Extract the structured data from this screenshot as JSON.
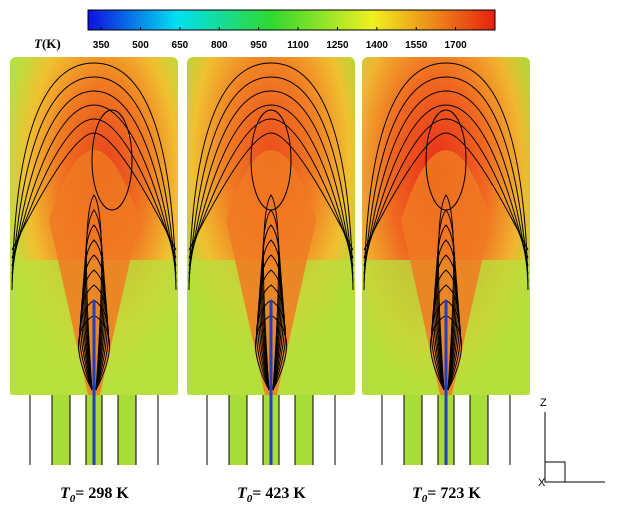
{
  "colorbar": {
    "variable": "T",
    "unit": "(K)",
    "lim": [
      300,
      1850
    ],
    "ticks": [
      350,
      500,
      650,
      800,
      950,
      1100,
      1250,
      1400,
      1550,
      1700
    ]
  },
  "panels": [
    {
      "variable": "T",
      "subscript": "0",
      "text": "= 298 K"
    },
    {
      "variable": "T",
      "subscript": "0",
      "text": "= 423 K"
    },
    {
      "variable": "T",
      "subscript": "0",
      "text": "= 723 K"
    }
  ],
  "axes": {
    "vertical": "Z",
    "horizontal": "X"
  }
}
